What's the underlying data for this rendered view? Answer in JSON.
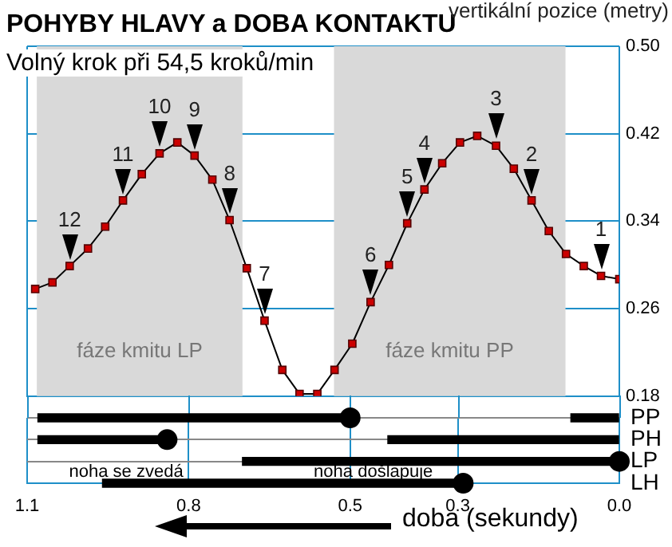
{
  "chart_data": [
    {
      "type": "line",
      "title": "POHYBY HLAVY a DOBA KONTAKTU",
      "subtitle": "Volný krok při 54,5 kroků/min",
      "ylabel": "vertikální pozice (metry)",
      "series": [
        {
          "type": "line",
          "color": "#cc0000",
          "marker": "square",
          "line_style": "solid",
          "x": [
            1.085,
            1.053,
            1.021,
            0.987,
            0.955,
            0.922,
            0.887,
            0.854,
            0.821,
            0.789,
            0.756,
            0.724,
            0.692,
            0.659,
            0.626,
            0.594,
            0.561,
            0.529,
            0.496,
            0.462,
            0.428,
            0.394,
            0.362,
            0.329,
            0.296,
            0.264,
            0.229,
            0.196,
            0.163,
            0.131,
            0.099,
            0.066,
            0.034,
            0.0
          ],
          "values": [
            0.278,
            0.284,
            0.299,
            0.315,
            0.335,
            0.359,
            0.383,
            0.402,
            0.412,
            0.4,
            0.378,
            0.341,
            0.297,
            0.249,
            0.204,
            0.182,
            0.182,
            0.204,
            0.228,
            0.266,
            0.3,
            0.338,
            0.369,
            0.393,
            0.412,
            0.418,
            0.409,
            0.388,
            0.359,
            0.331,
            0.31,
            0.299,
            0.29,
            0.287
          ]
        }
      ],
      "xlim": [
        1.1,
        0
      ],
      "xticks": [
        1.1,
        0.8,
        0.5,
        0.3,
        0
      ],
      "ylim": [
        0.18,
        0.5
      ],
      "yticks": [
        0.18,
        0.26,
        0.34,
        0.42,
        {
          "value": 0.5,
          "label": "0.50"
        }
      ],
      "grid": true,
      "legend": false,
      "tick_labels": "y",
      "bands": [
        {
          "axis": "x",
          "from": 1.082,
          "to": 0.7,
          "label": "fáze kmitu LP",
          "color": "#d9d9d9"
        },
        {
          "axis": "x",
          "from": 0.53,
          "to": 0.1,
          "label": "fáze kmitu PP",
          "color": "#d9d9d9"
        }
      ],
      "annotations": [
        {
          "text": "12",
          "x": 1.021,
          "y": 0.299
        },
        {
          "text": "11",
          "x": 0.922,
          "y": 0.359
        },
        {
          "text": "10",
          "x": 0.854,
          "y": 0.402
        },
        {
          "text": "9",
          "x": 0.789,
          "y": 0.4
        },
        {
          "text": "8",
          "x": 0.724,
          "y": 0.341
        },
        {
          "text": "7",
          "x": 0.659,
          "y": 0.249
        },
        {
          "text": "6",
          "x": 0.462,
          "y": 0.266
        },
        {
          "text": "5",
          "x": 0.394,
          "y": 0.338
        },
        {
          "text": "4",
          "x": 0.362,
          "y": 0.369
        },
        {
          "text": "3",
          "x": 0.229,
          "y": 0.409
        },
        {
          "text": "2",
          "x": 0.163,
          "y": 0.359
        },
        {
          "text": "1",
          "x": 0.034,
          "y": 0.29
        }
      ]
    },
    {
      "type": "bar",
      "orientation": "horizontal",
      "categories": [
        "PP",
        "PH",
        "LP",
        "LH"
      ],
      "xlabel": "doba (sekundy)",
      "series": [
        {
          "type": "bar",
          "color": "#000000",
          "base": [
            0.5,
            0.84,
            0.0,
            0.29
          ],
          "values": [
            0.58,
            0.24,
            0.7,
            0.67
          ]
        },
        {
          "type": "bar",
          "color": "#000000",
          "base": [
            0.0,
            0.0,
            null,
            null
          ],
          "values": [
            0.09,
            0.43,
            null,
            null
          ]
        },
        {
          "type": "scatter",
          "color": "#000000",
          "marker": "circle",
          "values": [
            0.5,
            0.84,
            0.0,
            0.29
          ]
        }
      ],
      "xlim": [
        1.1,
        0
      ],
      "xticks": [
        1.1,
        0.8,
        0.5,
        0.3,
        {
          "value": 0,
          "label": "0.0"
        }
      ],
      "grid": true,
      "legend": false,
      "annotations": [
        {
          "text": "noha se zvedá",
          "x": 0.916,
          "y": "LH"
        },
        {
          "text": "noha došlapuje",
          "x": 0.457,
          "y": "LH"
        }
      ]
    }
  ]
}
